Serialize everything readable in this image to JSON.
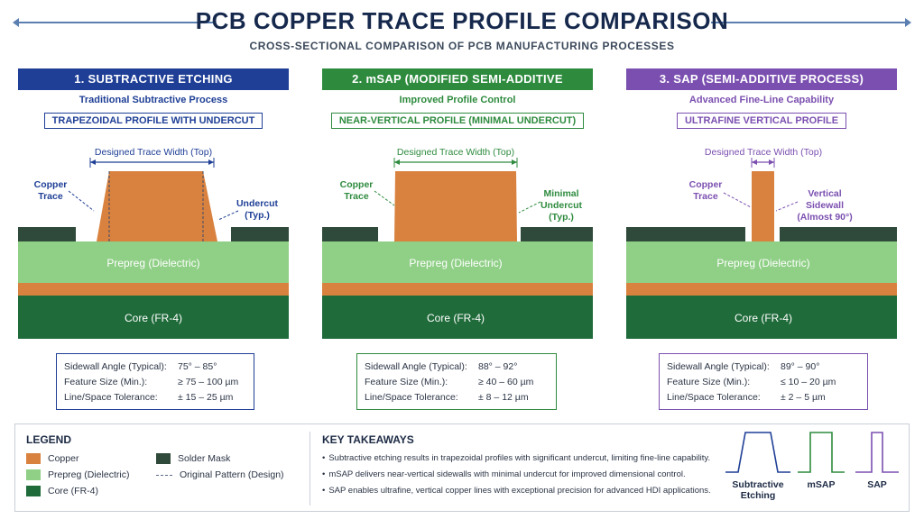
{
  "header": {
    "title": "PCB COPPER  TRACE PROFILE COMPARISON",
    "subtitle": "CROSS-SECTIONAL COMPARISON OF PCB MANUFACTURING PROCESSES"
  },
  "colors": {
    "copper": "#d9823f",
    "solder_mask": "#2f4a3a",
    "prepreg": "#8fcf86",
    "core": "#1f6b3a",
    "blue": "#1f3f96",
    "green": "#2e8b3e",
    "purple": "#7b4fb0"
  },
  "layers": {
    "prepreg": "Prepreg (Dielectric)",
    "core": "Core (FR-4)"
  },
  "panels": [
    {
      "header": "1. SUBTRACTIVE ETCHING",
      "subtitle": "Traditional Subtractive Process",
      "profile": "TRAPEZOIDAL PROFILE WITH UNDERCUT",
      "width_label": "Designed Trace Width (Top)",
      "left_label": [
        "Copper",
        "Trace"
      ],
      "right_label": [
        "Undercut",
        "(Typ.)"
      ],
      "specs": [
        {
          "k": "Sidewall Angle (Typical):",
          "v": "75° – 85°"
        },
        {
          "k": "Feature Size (Min.):",
          "v": "≥ 75 – 100 µm"
        },
        {
          "k": "Line/Space Tolerance:",
          "v": "± 15 – 25 µm"
        }
      ]
    },
    {
      "header": "2. mSAP (MODIFIED SEMI-ADDITIVE PROCESS)",
      "subtitle": "Improved Profile Control",
      "profile": "NEAR-VERTICAL PROFILE (MINIMAL UNDERCUT)",
      "width_label": "Designed Trace Width (Top)",
      "left_label": [
        "Copper",
        "Trace"
      ],
      "right_label": [
        "Minimal",
        "Undercut",
        "(Typ.)"
      ],
      "specs": [
        {
          "k": "Sidewall Angle (Typical):",
          "v": "88° – 92°"
        },
        {
          "k": "Feature Size (Min.):",
          "v": "≥ 40 – 60 µm"
        },
        {
          "k": "Line/Space Tolerance:",
          "v": "± 8 – 12 µm"
        }
      ]
    },
    {
      "header": "3. SAP (SEMI-ADDITIVE PROCESS)",
      "subtitle": "Advanced Fine-Line Capability",
      "profile": "ULTRAFINE VERTICAL PROFILE",
      "width_label": "Designed Trace Width (Top)",
      "left_label": [
        "Copper",
        "Trace"
      ],
      "right_label": [
        "Vertical",
        "Sidewall",
        "(Almost 90°)"
      ],
      "specs": [
        {
          "k": "Sidewall Angle (Typical):",
          "v": "89° – 90°"
        },
        {
          "k": "Feature Size (Min.):",
          "v": "≤ 10 – 20 µm"
        },
        {
          "k": "Line/Space Tolerance:",
          "v": "± 2 – 5 µm"
        }
      ]
    }
  ],
  "legend": {
    "title": "LEGEND",
    "items": {
      "copper": "Copper",
      "prepreg": "Prepreg (Dielectric)",
      "core": "Core (FR-4)",
      "solder_mask": "Solder Mask",
      "original": "Original Pattern (Design)"
    }
  },
  "takeaways": {
    "title": "KEY TAKEAWAYS",
    "items": [
      "Subtractive etching results in trapezoidal profiles with significant undercut, limiting fine-line capability.",
      "mSAP delivers near-vertical sidewalls with minimal undercut for improved dimensional control.",
      "SAP enables ultrafine, vertical copper lines with exceptional precision for advanced HDI applications."
    ]
  },
  "mini_profiles": {
    "subtractive": [
      "Subtractive",
      "Etching"
    ],
    "msap": "mSAP",
    "sap": "SAP"
  }
}
